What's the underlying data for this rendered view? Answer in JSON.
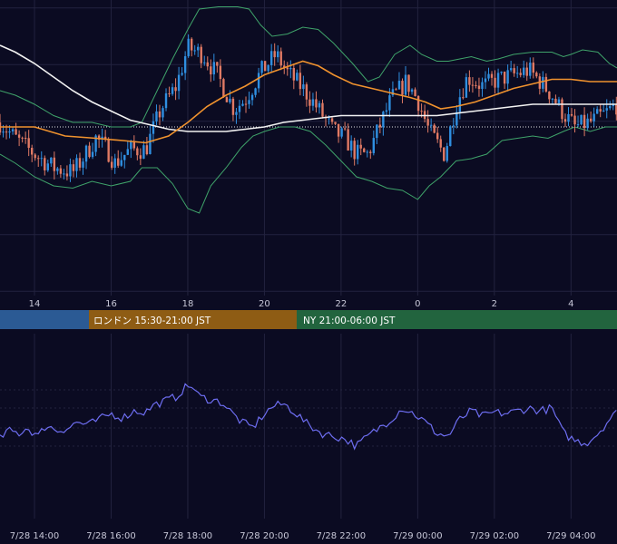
{
  "colors": {
    "background": "#0b0b22",
    "grid": "#23233f",
    "candle_up": "#2f8fe0",
    "candle_down": "#e07a64",
    "ma_short": "#f0922e",
    "ma_long": "#f2f2f2",
    "bollinger": "#3fa36a",
    "oscillator": "#6d6df0",
    "session_tokyo": "#2b5a94",
    "session_london": "#8e5c14",
    "session_ny": "#22643e",
    "ref_line": "#e6e6e6",
    "axis_text": "#c8c8d8"
  },
  "sessions": [
    {
      "label": "",
      "color_key": "session_tokyo"
    },
    {
      "label": "ロンドン 15:30-21:00 JST",
      "color_key": "session_london"
    },
    {
      "label": "NY 21:00-06:00 JST",
      "color_key": "session_ny"
    }
  ],
  "chart_data": [
    {
      "type": "candlestick",
      "title": "",
      "x_tick_labels": [
        "14",
        "16",
        "18",
        "20",
        "22",
        "0",
        "2",
        "4"
      ],
      "x_tick_hours": [
        14,
        16,
        18,
        20,
        22,
        24,
        26,
        28
      ],
      "x_range_hours": [
        13.1,
        29.2
      ],
      "y_range": [
        0,
        100
      ],
      "grid": true,
      "reference_level": 60,
      "anchors": [
        {
          "h": 13.1,
          "v": 62
        },
        {
          "h": 13.5,
          "v": 55
        },
        {
          "h": 14.0,
          "v": 48
        },
        {
          "h": 14.5,
          "v": 42
        },
        {
          "h": 15.0,
          "v": 40
        },
        {
          "h": 15.3,
          "v": 47
        },
        {
          "h": 15.6,
          "v": 55
        },
        {
          "h": 15.9,
          "v": 50
        },
        {
          "h": 16.1,
          "v": 44
        },
        {
          "h": 16.5,
          "v": 50
        },
        {
          "h": 16.9,
          "v": 50
        },
        {
          "h": 17.3,
          "v": 68
        },
        {
          "h": 17.7,
          "v": 78
        },
        {
          "h": 18.0,
          "v": 95
        },
        {
          "h": 18.4,
          "v": 92
        },
        {
          "h": 18.8,
          "v": 82
        },
        {
          "h": 19.2,
          "v": 68
        },
        {
          "h": 19.5,
          "v": 72
        },
        {
          "h": 19.9,
          "v": 84
        },
        {
          "h": 20.3,
          "v": 92
        },
        {
          "h": 20.6,
          "v": 84
        },
        {
          "h": 21.0,
          "v": 77
        },
        {
          "h": 21.4,
          "v": 68
        },
        {
          "h": 21.8,
          "v": 58
        },
        {
          "h": 22.1,
          "v": 55
        },
        {
          "h": 22.4,
          "v": 48
        },
        {
          "h": 22.7,
          "v": 48
        },
        {
          "h": 23.0,
          "v": 60
        },
        {
          "h": 23.3,
          "v": 72
        },
        {
          "h": 23.7,
          "v": 80
        },
        {
          "h": 24.0,
          "v": 72
        },
        {
          "h": 24.3,
          "v": 58
        },
        {
          "h": 24.7,
          "v": 48
        },
        {
          "h": 25.0,
          "v": 70
        },
        {
          "h": 25.3,
          "v": 82
        },
        {
          "h": 25.7,
          "v": 78
        },
        {
          "h": 26.1,
          "v": 81
        },
        {
          "h": 26.5,
          "v": 83
        },
        {
          "h": 26.9,
          "v": 85
        },
        {
          "h": 27.2,
          "v": 80
        },
        {
          "h": 27.5,
          "v": 74
        },
        {
          "h": 27.8,
          "v": 66
        },
        {
          "h": 28.1,
          "v": 60
        },
        {
          "h": 28.5,
          "v": 62
        },
        {
          "h": 28.9,
          "v": 66
        },
        {
          "h": 29.2,
          "v": 70
        }
      ],
      "ma_short": [
        {
          "h": 13.1,
          "v": 60
        },
        {
          "h": 14.0,
          "v": 60
        },
        {
          "h": 14.8,
          "v": 56
        },
        {
          "h": 15.6,
          "v": 55
        },
        {
          "h": 16.3,
          "v": 54
        },
        {
          "h": 16.9,
          "v": 53
        },
        {
          "h": 17.5,
          "v": 56
        },
        {
          "h": 18.0,
          "v": 62
        },
        {
          "h": 18.5,
          "v": 69
        },
        {
          "h": 19.0,
          "v": 74
        },
        {
          "h": 19.5,
          "v": 78
        },
        {
          "h": 20.0,
          "v": 83
        },
        {
          "h": 20.5,
          "v": 86
        },
        {
          "h": 21.0,
          "v": 89
        },
        {
          "h": 21.4,
          "v": 87
        },
        {
          "h": 21.8,
          "v": 83
        },
        {
          "h": 22.3,
          "v": 79
        },
        {
          "h": 22.8,
          "v": 77
        },
        {
          "h": 23.3,
          "v": 75
        },
        {
          "h": 23.8,
          "v": 73
        },
        {
          "h": 24.2,
          "v": 71
        },
        {
          "h": 24.6,
          "v": 68
        },
        {
          "h": 25.0,
          "v": 69
        },
        {
          "h": 25.5,
          "v": 71
        },
        {
          "h": 26.0,
          "v": 74
        },
        {
          "h": 26.5,
          "v": 77
        },
        {
          "h": 27.0,
          "v": 79
        },
        {
          "h": 27.5,
          "v": 81
        },
        {
          "h": 28.0,
          "v": 81
        },
        {
          "h": 28.5,
          "v": 80
        },
        {
          "h": 29.2,
          "v": 80
        }
      ],
      "ma_long": [
        {
          "h": 13.1,
          "v": 96
        },
        {
          "h": 13.5,
          "v": 93
        },
        {
          "h": 14.0,
          "v": 88
        },
        {
          "h": 14.5,
          "v": 82
        },
        {
          "h": 15.0,
          "v": 76
        },
        {
          "h": 15.5,
          "v": 71
        },
        {
          "h": 16.0,
          "v": 67
        },
        {
          "h": 16.5,
          "v": 63
        },
        {
          "h": 17.0,
          "v": 61
        },
        {
          "h": 17.5,
          "v": 59
        },
        {
          "h": 18.0,
          "v": 58
        },
        {
          "h": 18.5,
          "v": 58
        },
        {
          "h": 19.0,
          "v": 58
        },
        {
          "h": 19.5,
          "v": 59
        },
        {
          "h": 20.0,
          "v": 60
        },
        {
          "h": 20.5,
          "v": 62
        },
        {
          "h": 21.0,
          "v": 63
        },
        {
          "h": 21.5,
          "v": 64
        },
        {
          "h": 22.0,
          "v": 65
        },
        {
          "h": 22.5,
          "v": 65
        },
        {
          "h": 23.0,
          "v": 65
        },
        {
          "h": 23.5,
          "v": 65
        },
        {
          "h": 24.0,
          "v": 65
        },
        {
          "h": 24.5,
          "v": 65
        },
        {
          "h": 25.0,
          "v": 66
        },
        {
          "h": 25.5,
          "v": 67
        },
        {
          "h": 26.0,
          "v": 68
        },
        {
          "h": 26.5,
          "v": 69
        },
        {
          "h": 27.0,
          "v": 70
        },
        {
          "h": 27.5,
          "v": 70
        },
        {
          "h": 28.0,
          "v": 70
        },
        {
          "h": 29.2,
          "v": 70
        }
      ],
      "bollinger_upper": [
        {
          "h": 13.1,
          "v": 76
        },
        {
          "h": 13.5,
          "v": 74
        },
        {
          "h": 14.0,
          "v": 70
        },
        {
          "h": 14.5,
          "v": 65
        },
        {
          "h": 15.0,
          "v": 62
        },
        {
          "h": 15.5,
          "v": 62
        },
        {
          "h": 16.0,
          "v": 60
        },
        {
          "h": 16.5,
          "v": 60
        },
        {
          "h": 16.8,
          "v": 62
        },
        {
          "h": 17.2,
          "v": 76
        },
        {
          "h": 17.6,
          "v": 90
        },
        {
          "h": 18.0,
          "v": 103
        },
        {
          "h": 18.3,
          "v": 112
        },
        {
          "h": 18.8,
          "v": 113
        },
        {
          "h": 19.3,
          "v": 113
        },
        {
          "h": 19.6,
          "v": 112
        },
        {
          "h": 19.9,
          "v": 105
        },
        {
          "h": 20.2,
          "v": 100
        },
        {
          "h": 20.6,
          "v": 101
        },
        {
          "h": 21.0,
          "v": 104
        },
        {
          "h": 21.4,
          "v": 103
        },
        {
          "h": 21.8,
          "v": 97
        },
        {
          "h": 22.3,
          "v": 88
        },
        {
          "h": 22.7,
          "v": 80
        },
        {
          "h": 23.0,
          "v": 82
        },
        {
          "h": 23.4,
          "v": 92
        },
        {
          "h": 23.8,
          "v": 96
        },
        {
          "h": 24.1,
          "v": 92
        },
        {
          "h": 24.5,
          "v": 89
        },
        {
          "h": 24.8,
          "v": 89
        },
        {
          "h": 25.1,
          "v": 90
        },
        {
          "h": 25.4,
          "v": 91
        },
        {
          "h": 25.8,
          "v": 89
        },
        {
          "h": 26.1,
          "v": 90
        },
        {
          "h": 26.5,
          "v": 92
        },
        {
          "h": 27.0,
          "v": 93
        },
        {
          "h": 27.5,
          "v": 93
        },
        {
          "h": 27.8,
          "v": 91
        },
        {
          "h": 28.0,
          "v": 92
        },
        {
          "h": 28.3,
          "v": 94
        },
        {
          "h": 28.7,
          "v": 93
        },
        {
          "h": 29.0,
          "v": 88
        },
        {
          "h": 29.2,
          "v": 86
        }
      ],
      "bollinger_lower": [
        {
          "h": 13.1,
          "v": 48
        },
        {
          "h": 13.5,
          "v": 44
        },
        {
          "h": 14.0,
          "v": 38
        },
        {
          "h": 14.5,
          "v": 34
        },
        {
          "h": 15.0,
          "v": 33
        },
        {
          "h": 15.5,
          "v": 36
        },
        {
          "h": 16.0,
          "v": 34
        },
        {
          "h": 16.5,
          "v": 36
        },
        {
          "h": 16.8,
          "v": 42
        },
        {
          "h": 17.2,
          "v": 42
        },
        {
          "h": 17.6,
          "v": 35
        },
        {
          "h": 18.0,
          "v": 24
        },
        {
          "h": 18.3,
          "v": 22
        },
        {
          "h": 18.6,
          "v": 34
        },
        {
          "h": 19.0,
          "v": 42
        },
        {
          "h": 19.4,
          "v": 51
        },
        {
          "h": 19.7,
          "v": 56
        },
        {
          "h": 20.0,
          "v": 58
        },
        {
          "h": 20.4,
          "v": 60
        },
        {
          "h": 20.8,
          "v": 60
        },
        {
          "h": 21.2,
          "v": 58
        },
        {
          "h": 21.6,
          "v": 52
        },
        {
          "h": 22.0,
          "v": 45
        },
        {
          "h": 22.4,
          "v": 38
        },
        {
          "h": 22.8,
          "v": 36
        },
        {
          "h": 23.2,
          "v": 33
        },
        {
          "h": 23.6,
          "v": 32
        },
        {
          "h": 24.0,
          "v": 28
        },
        {
          "h": 24.3,
          "v": 34
        },
        {
          "h": 24.6,
          "v": 38
        },
        {
          "h": 25.0,
          "v": 45
        },
        {
          "h": 25.4,
          "v": 46
        },
        {
          "h": 25.8,
          "v": 48
        },
        {
          "h": 26.2,
          "v": 54
        },
        {
          "h": 26.6,
          "v": 55
        },
        {
          "h": 27.0,
          "v": 56
        },
        {
          "h": 27.4,
          "v": 55
        },
        {
          "h": 27.8,
          "v": 58
        },
        {
          "h": 28.1,
          "v": 60
        },
        {
          "h": 28.5,
          "v": 58
        },
        {
          "h": 28.9,
          "v": 60
        },
        {
          "h": 29.2,
          "v": 60
        }
      ]
    },
    {
      "type": "line",
      "title": "",
      "x_tick_labels": [
        "7/28 14:00",
        "7/28 16:00",
        "7/28 18:00",
        "7/28 20:00",
        "7/28 22:00",
        "7/29 00:00",
        "7/29 02:00",
        "7/29 04:00"
      ],
      "x_tick_hours": [
        14,
        16,
        18,
        20,
        22,
        24,
        26,
        28
      ],
      "x_range_hours": [
        13.1,
        29.2
      ],
      "y_range": [
        0,
        100
      ],
      "grid": true,
      "anchors": [
        {
          "h": 13.1,
          "v": 36
        },
        {
          "h": 13.3,
          "v": 42
        },
        {
          "h": 13.6,
          "v": 40
        },
        {
          "h": 13.8,
          "v": 44
        },
        {
          "h": 14.1,
          "v": 38
        },
        {
          "h": 14.3,
          "v": 46
        },
        {
          "h": 14.6,
          "v": 42
        },
        {
          "h": 14.9,
          "v": 44
        },
        {
          "h": 15.1,
          "v": 48
        },
        {
          "h": 15.4,
          "v": 46
        },
        {
          "h": 15.7,
          "v": 50
        },
        {
          "h": 16.0,
          "v": 54
        },
        {
          "h": 16.3,
          "v": 51
        },
        {
          "h": 16.6,
          "v": 56
        },
        {
          "h": 16.9,
          "v": 55
        },
        {
          "h": 17.1,
          "v": 60
        },
        {
          "h": 17.4,
          "v": 63
        },
        {
          "h": 17.7,
          "v": 66
        },
        {
          "h": 17.9,
          "v": 72
        },
        {
          "h": 18.1,
          "v": 74
        },
        {
          "h": 18.3,
          "v": 66
        },
        {
          "h": 18.6,
          "v": 64
        },
        {
          "h": 18.9,
          "v": 62
        },
        {
          "h": 19.1,
          "v": 56
        },
        {
          "h": 19.4,
          "v": 48
        },
        {
          "h": 19.7,
          "v": 44
        },
        {
          "h": 19.9,
          "v": 51
        },
        {
          "h": 20.2,
          "v": 59
        },
        {
          "h": 20.5,
          "v": 61
        },
        {
          "h": 20.8,
          "v": 55
        },
        {
          "h": 21.1,
          "v": 47
        },
        {
          "h": 21.5,
          "v": 40
        },
        {
          "h": 21.8,
          "v": 38
        },
        {
          "h": 22.1,
          "v": 36
        },
        {
          "h": 22.4,
          "v": 31
        },
        {
          "h": 22.7,
          "v": 38
        },
        {
          "h": 23.0,
          "v": 44
        },
        {
          "h": 23.3,
          "v": 50
        },
        {
          "h": 23.6,
          "v": 58
        },
        {
          "h": 23.9,
          "v": 54
        },
        {
          "h": 24.2,
          "v": 48
        },
        {
          "h": 24.5,
          "v": 40
        },
        {
          "h": 24.8,
          "v": 38
        },
        {
          "h": 25.1,
          "v": 50
        },
        {
          "h": 25.4,
          "v": 56
        },
        {
          "h": 25.7,
          "v": 52
        },
        {
          "h": 26.0,
          "v": 55
        },
        {
          "h": 26.3,
          "v": 54
        },
        {
          "h": 26.6,
          "v": 56
        },
        {
          "h": 26.9,
          "v": 58
        },
        {
          "h": 27.2,
          "v": 56
        },
        {
          "h": 27.5,
          "v": 58
        },
        {
          "h": 27.8,
          "v": 40
        },
        {
          "h": 28.1,
          "v": 35
        },
        {
          "h": 28.4,
          "v": 33
        },
        {
          "h": 28.7,
          "v": 40
        },
        {
          "h": 29.0,
          "v": 50
        },
        {
          "h": 29.2,
          "v": 55
        }
      ]
    }
  ]
}
